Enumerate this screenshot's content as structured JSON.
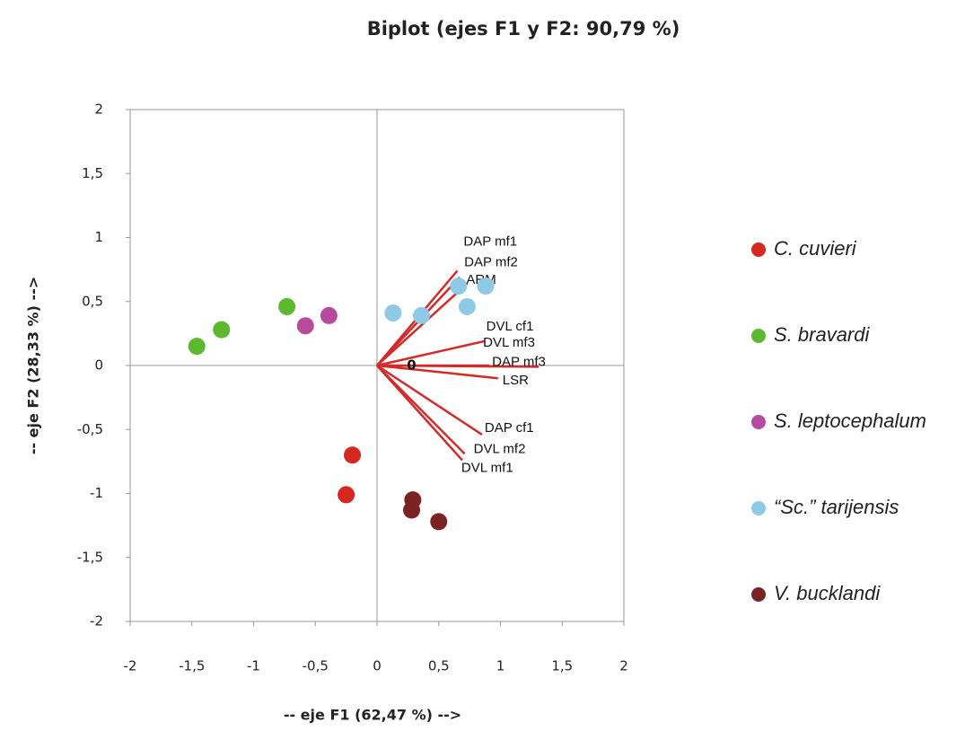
{
  "chart_data": {
    "type": "scatter",
    "title": "Biplot (ejes F1 y F2: 90,79 %)",
    "x_label": "-- eje F1 (62,47 %) -->",
    "y_label": "-- eje F2 (28,33 %) -->",
    "annotation": "0",
    "xlim": [
      -2,
      2
    ],
    "ylim": [
      -2,
      2
    ],
    "xticks": [
      -2,
      {
        "value": -1.5,
        "label": "-1,5"
      },
      -1,
      {
        "value": -0.5,
        "label": "-0,5"
      },
      0,
      {
        "value": 0.5,
        "label": "0,5"
      },
      1,
      {
        "value": 1.5,
        "label": "1,5"
      },
      2
    ],
    "yticks": [
      -2,
      {
        "value": -1.5,
        "label": "-1,5"
      },
      -1,
      {
        "value": -0.5,
        "label": "-0,5"
      },
      0,
      {
        "value": 0.5,
        "label": "0,5"
      },
      1,
      {
        "value": 1.5,
        "label": "1,5"
      },
      2
    ],
    "series": [
      {
        "name": "C. cuvieri",
        "color": "#d6281e",
        "x": [
          -0.2,
          -0.25
        ],
        "values": [
          -0.7,
          -1.01
        ]
      },
      {
        "name": "S. bravardi",
        "color": "#5cb82e",
        "x": [
          -1.46,
          -1.26,
          -0.73
        ],
        "values": [
          0.15,
          0.28,
          0.46
        ]
      },
      {
        "name": "S. leptocephalum",
        "color": "#b84a9e",
        "x": [
          -0.58,
          -0.39
        ],
        "values": [
          0.31,
          0.39
        ]
      },
      {
        "name": "“Sc.” tarijensis",
        "color": "#8ecae6",
        "x": [
          0.13,
          0.36,
          0.66,
          0.73,
          0.88
        ],
        "values": [
          0.41,
          0.39,
          0.62,
          0.46,
          0.62
        ]
      },
      {
        "name": "V. bucklandi",
        "color": "#7b2222",
        "x": [
          0.29,
          0.28,
          0.5
        ],
        "values": [
          -1.05,
          -1.13,
          -1.22
        ]
      }
    ],
    "vector_color": "#d42a2a",
    "vectors": [
      {
        "name": "DAP mf1",
        "x": 0.65,
        "y": 0.74
      },
      {
        "name": "DAP mf2",
        "x": 0.67,
        "y": 0.69
      },
      {
        "name": "ARM",
        "x": 0.73,
        "y": 0.64
      },
      {
        "name": "DVL cf1",
        "x": 0.87,
        "y": 0.19
      },
      {
        "name": "DVL mf3",
        "x": 0.91,
        "y": 0.0
      },
      {
        "name": "DAP mf3",
        "x": 1.31,
        "y": -0.01
      },
      {
        "name": "LSR",
        "x": 0.98,
        "y": -0.1
      },
      {
        "name": "DAP cf1",
        "x": 0.85,
        "y": -0.54
      },
      {
        "name": "DVL mf2",
        "x": 0.71,
        "y": -0.69
      },
      {
        "name": "DVL mf1",
        "x": 0.69,
        "y": -0.74
      }
    ]
  }
}
